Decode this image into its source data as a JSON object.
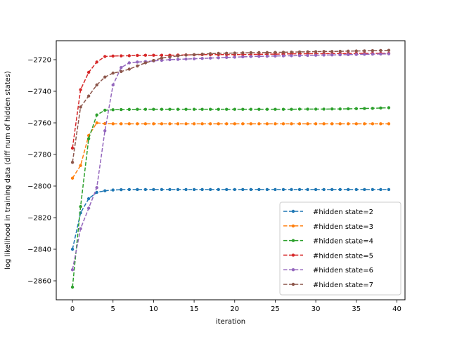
{
  "chart_data": {
    "type": "line",
    "title": "",
    "xlabel": "iteration",
    "ylabel": "log likelihood in training data (diff num of hidden states)",
    "xlim": [
      -2,
      41
    ],
    "ylim": [
      -2872,
      -2708
    ],
    "xticks": [
      0,
      5,
      10,
      15,
      20,
      25,
      30,
      35,
      40
    ],
    "yticks": [
      -2860,
      -2840,
      -2820,
      -2800,
      -2780,
      -2760,
      -2740,
      -2720
    ],
    "grid": false,
    "legend_position": "lower-right",
    "line_style": "dashed",
    "marker": "circle",
    "x": [
      0,
      1,
      2,
      3,
      4,
      5,
      6,
      7,
      8,
      9,
      10,
      11,
      12,
      13,
      14,
      15,
      16,
      17,
      18,
      19,
      20,
      21,
      22,
      23,
      24,
      25,
      26,
      27,
      28,
      29,
      30,
      31,
      32,
      33,
      34,
      35,
      36,
      37,
      38,
      39
    ],
    "series": [
      {
        "name": "#hidden state=2",
        "color": "#1f77b4",
        "values": [
          -2840,
          -2817,
          -2808,
          -2804,
          -2803,
          -2802.5,
          -2802.3,
          -2802.2,
          -2802.2,
          -2802.2,
          -2802.2,
          -2802.2,
          -2802.2,
          -2802.2,
          -2802.2,
          -2802.2,
          -2802.2,
          -2802.2,
          -2802.2,
          -2802.2,
          -2802.2,
          -2802.2,
          -2802.2,
          -2802.2,
          -2802.2,
          -2802.2,
          -2802.2,
          -2802.2,
          -2802.2,
          -2802.2,
          -2802.2,
          -2802.2,
          -2802.2,
          -2802.2,
          -2802.2,
          -2802.2,
          -2802.2,
          -2802.2,
          -2802.2,
          -2802.2
        ]
      },
      {
        "name": "#hidden state=3",
        "color": "#ff7f0e",
        "values": [
          -2795,
          -2787,
          -2768,
          -2760,
          -2760.5,
          -2760.6,
          -2760.6,
          -2760.6,
          -2760.6,
          -2760.6,
          -2760.6,
          -2760.6,
          -2760.6,
          -2760.6,
          -2760.6,
          -2760.6,
          -2760.6,
          -2760.6,
          -2760.6,
          -2760.6,
          -2760.6,
          -2760.6,
          -2760.6,
          -2760.6,
          -2760.6,
          -2760.6,
          -2760.6,
          -2760.6,
          -2760.6,
          -2760.6,
          -2760.6,
          -2760.6,
          -2760.6,
          -2760.6,
          -2760.6,
          -2760.6,
          -2760.6,
          -2760.6,
          -2760.6,
          -2760.6
        ]
      },
      {
        "name": "#hidden state=4",
        "color": "#2ca02c",
        "values": [
          -2864,
          -2813,
          -2770,
          -2755,
          -2752,
          -2751.7,
          -2751.6,
          -2751.5,
          -2751.4,
          -2751.4,
          -2751.4,
          -2751.4,
          -2751.4,
          -2751.4,
          -2751.4,
          -2751.4,
          -2751.4,
          -2751.4,
          -2751.4,
          -2751.4,
          -2751.4,
          -2751.4,
          -2751.4,
          -2751.4,
          -2751.4,
          -2751.4,
          -2751.4,
          -2751.4,
          -2751.3,
          -2751.3,
          -2751.3,
          -2751.3,
          -2751.2,
          -2751.2,
          -2751.1,
          -2751,
          -2750.9,
          -2750.8,
          -2750.6,
          -2750.4
        ]
      },
      {
        "name": "#hidden state=5",
        "color": "#d62728",
        "values": [
          -2776,
          -2739,
          -2728,
          -2721.5,
          -2718,
          -2717.7,
          -2717.6,
          -2717.5,
          -2717.3,
          -2717.2,
          -2717.2,
          -2717.2,
          -2717.2,
          -2717.1,
          -2717,
          -2716.9,
          -2716.8,
          -2716.8,
          -2716.8,
          -2716.8,
          -2716.8,
          -2716.7,
          -2716.7,
          -2716.6,
          -2716.5,
          -2716.5,
          -2716.4,
          -2716.3,
          -2716.3,
          -2716.2,
          -2716.2,
          -2716.2,
          -2716.1,
          -2716.1,
          -2716.1,
          -2716,
          -2716,
          -2716,
          -2716,
          -2716
        ]
      },
      {
        "name": "#hidden state=6",
        "color": "#9467bd",
        "values": [
          -2853,
          -2827,
          -2814,
          -2801,
          -2765,
          -2736,
          -2725,
          -2722,
          -2721.5,
          -2721.2,
          -2720.8,
          -2720.4,
          -2720,
          -2719.8,
          -2719.6,
          -2719.4,
          -2719.2,
          -2719,
          -2718.8,
          -2718.6,
          -2718.4,
          -2718.2,
          -2718,
          -2717.9,
          -2717.8,
          -2717.7,
          -2717.6,
          -2717.5,
          -2717.4,
          -2717.3,
          -2717.2,
          -2717.1,
          -2717,
          -2716.9,
          -2716.8,
          -2716.7,
          -2716.6,
          -2716.5,
          -2716.4,
          -2716.3
        ]
      },
      {
        "name": "#hidden state=7",
        "color": "#8c564b",
        "values": [
          -2785,
          -2750,
          -2743,
          -2736,
          -2731,
          -2728.5,
          -2727.5,
          -2726,
          -2724,
          -2722,
          -2720.5,
          -2719,
          -2718.2,
          -2717.6,
          -2717.1,
          -2716.8,
          -2716.5,
          -2716.2,
          -2716,
          -2715.9,
          -2715.8,
          -2715.7,
          -2715.6,
          -2715.5,
          -2715.5,
          -2715.4,
          -2715.3,
          -2715.2,
          -2715.1,
          -2715,
          -2714.9,
          -2714.8,
          -2714.8,
          -2714.7,
          -2714.6,
          -2714.5,
          -2714.4,
          -2714.3,
          -2714.2,
          -2714.1
        ]
      }
    ]
  }
}
